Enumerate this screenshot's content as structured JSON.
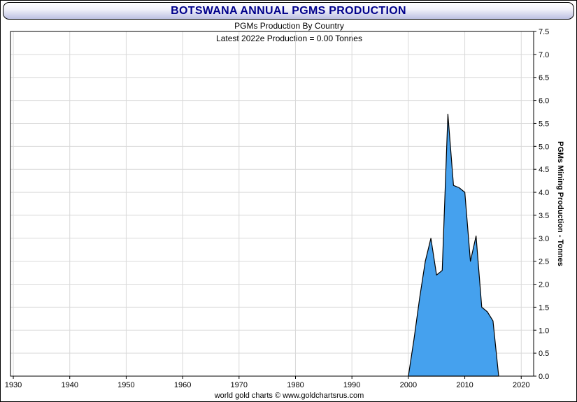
{
  "window": {
    "title": "BOTSWANA ANNUAL PGMS PRODUCTION"
  },
  "chart": {
    "subtitle": "PGMs Production By Country",
    "annotation": "Latest 2022e Production = 0.00 Tonnes",
    "y_axis_label": "PGMs Mining Production - Tonnes",
    "credit": "world gold charts © www.goldchartsrus.com"
  },
  "chart_data": {
    "type": "area",
    "title": "PGMs Production By Country",
    "annotation": "Latest 2022e Production = 0.00 Tonnes",
    "xlabel": "",
    "ylabel": "PGMs Mining Production - Tonnes",
    "x": [
      2000,
      2001,
      2002,
      2003,
      2004,
      2005,
      2006,
      2007,
      2008,
      2009,
      2010,
      2011,
      2012,
      2013,
      2014,
      2015,
      2016
    ],
    "values": [
      0.0,
      0.8,
      1.7,
      2.5,
      3.0,
      2.2,
      2.3,
      5.7,
      4.15,
      4.1,
      4.0,
      2.5,
      3.05,
      1.5,
      1.4,
      1.2,
      0.0
    ],
    "latest_value_label": "Latest 2022e Production = 0.00 Tonnes",
    "xlim": [
      1929.5,
      2022.2
    ],
    "ylim": [
      0,
      7.5
    ],
    "x_ticks": [
      1930,
      1940,
      1950,
      1960,
      1970,
      1980,
      1990,
      2000,
      2010,
      2020
    ],
    "y_ticks": [
      0.0,
      0.5,
      1.0,
      1.5,
      2.0,
      2.5,
      3.0,
      3.5,
      4.0,
      4.5,
      5.0,
      5.5,
      6.0,
      6.5,
      7.0,
      7.5
    ],
    "grid": true,
    "legend": "none",
    "grid_color": "#d9d9d9",
    "fill_color": "#45a1ee",
    "line_color": "#000000"
  },
  "colors": {
    "title_text": "#00008b",
    "banner_gradient_bottom": "#bcc0e2",
    "plot_border": "#000000",
    "background": "#ffffff"
  }
}
